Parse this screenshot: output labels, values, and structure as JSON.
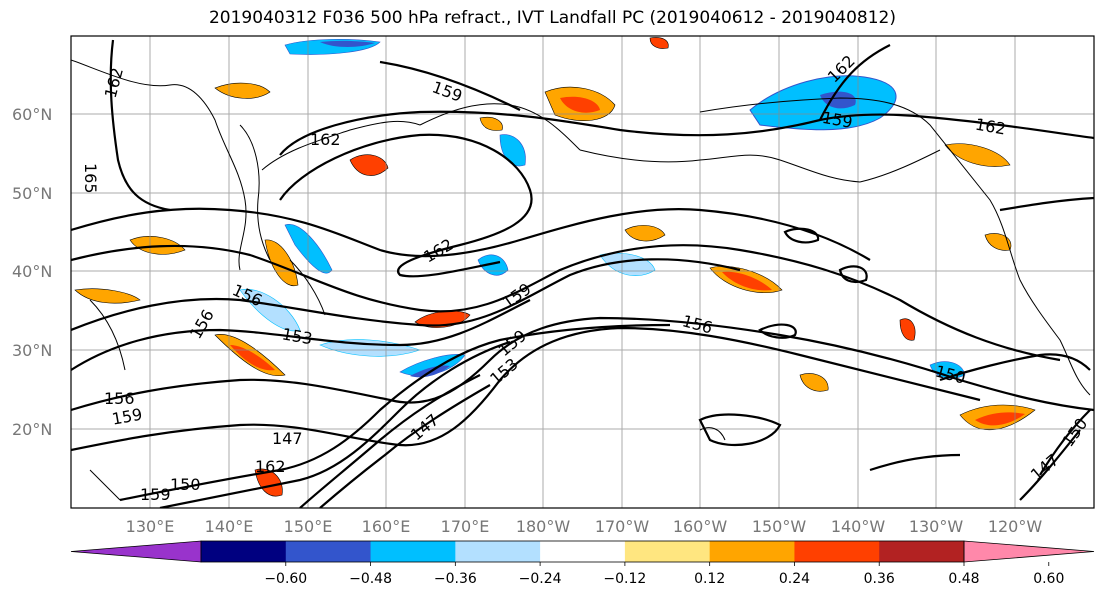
{
  "title": "2019040312 F036 500 hPa refract., IVT Landfall PC (2019040612 - 2019040812)",
  "map": {
    "lat_labels": [
      "60°N",
      "50°N",
      "40°N",
      "30°N",
      "20°N"
    ],
    "lon_labels": [
      "130°E",
      "140°E",
      "150°E",
      "160°E",
      "170°E",
      "180°W",
      "170°W",
      "160°W",
      "150°W",
      "140°W",
      "130°W",
      "120°W"
    ],
    "contour_labels": [
      "162",
      "159",
      "162",
      "162",
      "162",
      "159",
      "162",
      "165",
      "156",
      "156",
      "153",
      "159",
      "159",
      "156",
      "147",
      "153",
      "150",
      "147",
      "150",
      "147",
      "150",
      "159",
      "156",
      "162",
      "159"
    ]
  },
  "colorbar": {
    "tick_labels": [
      "−0.60",
      "−0.48",
      "−0.36",
      "−0.24",
      "−0.12",
      "0.12",
      "0.24",
      "0.36",
      "0.48",
      "0.60"
    ],
    "colors": [
      "#9933cc",
      "#000080",
      "#3355cc",
      "#00bfff",
      "#b3e0ff",
      "#ffffff",
      "#ffe680",
      "#ffa500",
      "#ff4000",
      "#b22222",
      "#ff88aa"
    ]
  }
}
